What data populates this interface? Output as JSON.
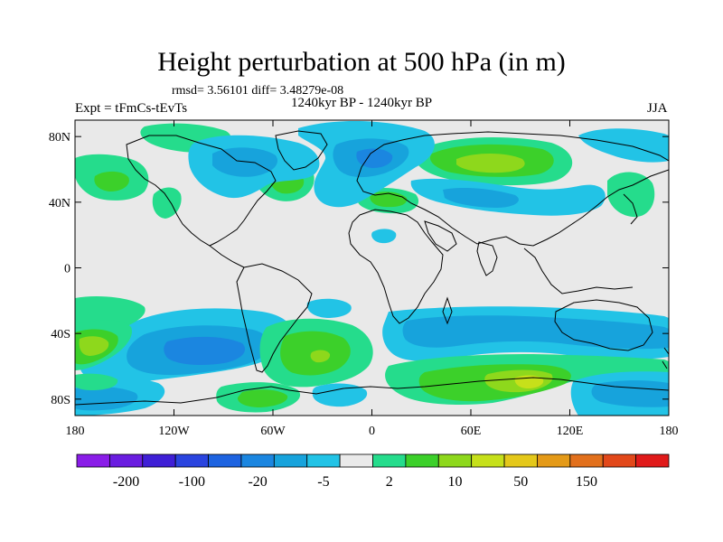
{
  "header": {
    "title": "Height perturbation at 500 hPa (in m)",
    "stats": "rmsd= 3.56101 diff= 3.48279e-08",
    "period": "1240kyr BP - 1240kyr BP",
    "experiment": "Expt = tFmCs-tEvTs",
    "season": "JJA"
  },
  "axes": {
    "y_ticks": [
      "80N",
      "40N",
      "0",
      "40S",
      "80S"
    ],
    "y_values": [
      80,
      40,
      0,
      -40,
      -80
    ],
    "x_ticks": [
      "180",
      "120W",
      "60W",
      "0",
      "60E",
      "120E",
      "180"
    ],
    "x_values": [
      -180,
      -120,
      -60,
      0,
      60,
      120,
      180
    ],
    "lat_range": [
      -90,
      90
    ],
    "lon_range": [
      -180,
      180
    ]
  },
  "colorbar": {
    "colors": [
      "#8a1de8",
      "#6a1de0",
      "#3f1fd6",
      "#2a44df",
      "#1d63e0",
      "#1b86e0",
      "#17a3dc",
      "#22c3e6",
      "#eaeaea",
      "#25dc8c",
      "#3cd02a",
      "#8ed81c",
      "#c6e01a",
      "#e4c81a",
      "#e49a18",
      "#e2701c",
      "#e2481a",
      "#e01a1a"
    ],
    "labels": [
      "-200",
      "-100",
      "-20",
      "-5",
      "2",
      "10",
      "50",
      "150"
    ]
  },
  "map": {
    "background_color": "#e9e9e9"
  }
}
